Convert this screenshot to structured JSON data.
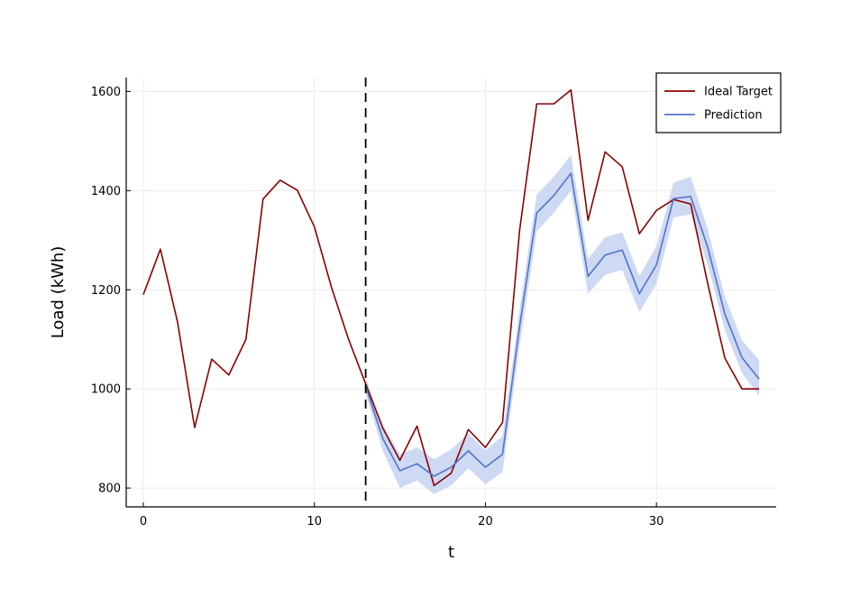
{
  "chart_data": {
    "type": "line",
    "title": "",
    "xlabel": "t",
    "ylabel": "Load (kWh)",
    "xlim": [
      -1,
      37
    ],
    "ylim": [
      762,
      1628
    ],
    "xticks": [
      0,
      10,
      20,
      30
    ],
    "yticks": [
      800,
      1000,
      1200,
      1400,
      1600
    ],
    "grid": true,
    "legend_position": "top-right",
    "forecast_start": 13,
    "series": [
      {
        "name": "Ideal Target",
        "color": "#8b0000",
        "x": [
          0,
          1,
          2,
          3,
          4,
          5,
          6,
          7,
          8,
          9,
          10,
          11,
          12,
          13,
          14,
          15,
          16,
          17,
          18,
          19,
          20,
          21,
          22,
          23,
          24,
          25,
          26,
          27,
          28,
          29,
          30,
          31,
          32,
          33,
          34,
          35,
          36
        ],
        "values": [
          1190,
          1282,
          1135,
          922,
          1060,
          1028,
          1100,
          1383,
          1421,
          1401,
          1327,
          1205,
          1100,
          1010,
          921,
          856,
          925,
          805,
          830,
          918,
          882,
          932,
          1320,
          1575,
          1575,
          1603,
          1340,
          1478,
          1448,
          1313,
          1360,
          1382,
          1373,
          1212,
          1062,
          1000,
          1000
        ]
      },
      {
        "name": "Prediction",
        "color": "#4f74c9",
        "band_color": "#c9d5f2",
        "x": [
          13,
          14,
          15,
          16,
          17,
          18,
          19,
          20,
          21,
          22,
          23,
          24,
          25,
          26,
          27,
          28,
          29,
          30,
          31,
          32,
          33,
          34,
          35,
          36
        ],
        "values": [
          1005,
          900,
          835,
          849,
          824,
          842,
          875,
          842,
          868,
          1126,
          1355,
          1390,
          1435,
          1227,
          1270,
          1280,
          1192,
          1250,
          1384,
          1388,
          1285,
          1151,
          1063,
          1020
        ],
        "lower": [
          990,
          875,
          800,
          815,
          788,
          805,
          840,
          808,
          832,
          1088,
          1318,
          1355,
          1400,
          1192,
          1230,
          1240,
          1155,
          1212,
          1346,
          1352,
          1250,
          1118,
          1032,
          986
        ],
        "upper": [
          1022,
          928,
          868,
          882,
          858,
          878,
          910,
          876,
          905,
          1162,
          1392,
          1428,
          1472,
          1262,
          1306,
          1316,
          1228,
          1288,
          1416,
          1428,
          1322,
          1186,
          1098,
          1058
        ]
      }
    ]
  }
}
